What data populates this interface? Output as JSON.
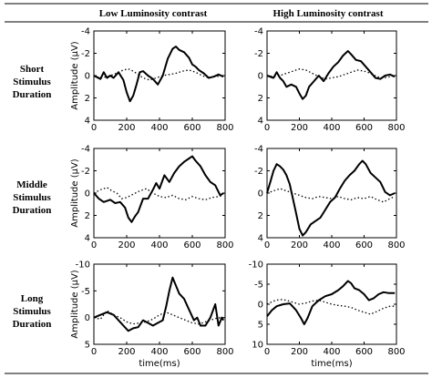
{
  "table": {
    "col_headers": [
      "Low Luminosity contrast",
      "High Luminosity contrast"
    ],
    "row_headers": [
      [
        "Short",
        "Stimulus",
        "Duration"
      ],
      [
        "Middle",
        "Stimulus",
        "Duration"
      ],
      [
        "Long",
        "Stimulus",
        "Duration"
      ]
    ]
  },
  "chart_data": [
    {
      "type": "line",
      "row": 0,
      "col": 0,
      "ylabel": "Amplitude (μV)",
      "xlabel": "",
      "xlim": [
        0,
        800
      ],
      "ylim": [
        -4,
        4
      ],
      "y_inverted": true,
      "xticks": [
        "0",
        "200",
        "400",
        "600",
        "800"
      ],
      "yticks": [
        "-4",
        "-2",
        "0",
        "2",
        "4"
      ],
      "series": [
        {
          "style": "solid",
          "x": [
            0,
            40,
            60,
            80,
            100,
            120,
            150,
            180,
            200,
            220,
            240,
            260,
            280,
            300,
            330,
            360,
            390,
            420,
            450,
            480,
            500,
            520,
            550,
            580,
            600,
            620,
            640,
            670,
            700,
            730,
            760,
            790
          ],
          "y": [
            0,
            0.3,
            -0.3,
            0.2,
            0,
            0.2,
            -0.3,
            0.4,
            1.5,
            2.3,
            1.8,
            0.8,
            -0.3,
            -0.4,
            0,
            0.3,
            0.8,
            0,
            -1.5,
            -2.4,
            -2.6,
            -2.3,
            -2.1,
            -1.6,
            -1,
            -0.8,
            -0.5,
            -0.2,
            0.2,
            0.1,
            -0.1,
            0.1
          ]
        },
        {
          "style": "dotted",
          "x": [
            0,
            40,
            80,
            120,
            150,
            180,
            210,
            240,
            270,
            300,
            340,
            380,
            420,
            460,
            500,
            540,
            580,
            620,
            660,
            700,
            740,
            790
          ],
          "y": [
            0,
            0.2,
            0.1,
            -0.1,
            -0.3,
            -0.5,
            -0.6,
            -0.4,
            -0.1,
            0.2,
            0.4,
            0.2,
            0,
            -0.1,
            -0.2,
            -0.4,
            -0.5,
            -0.3,
            0,
            0.2,
            0.1,
            0
          ]
        }
      ]
    },
    {
      "type": "line",
      "row": 0,
      "col": 1,
      "ylabel": "",
      "xlabel": "",
      "xlim": [
        0,
        800
      ],
      "ylim": [
        -4,
        4
      ],
      "y_inverted": true,
      "xticks": [
        "0",
        "200",
        "400",
        "600",
        "800"
      ],
      "yticks": [
        "-4",
        "-2",
        "0",
        "2",
        "4"
      ],
      "series": [
        {
          "style": "solid",
          "x": [
            0,
            40,
            60,
            80,
            100,
            120,
            150,
            180,
            200,
            220,
            240,
            260,
            290,
            320,
            350,
            380,
            410,
            440,
            470,
            500,
            520,
            550,
            580,
            610,
            640,
            670,
            700,
            730,
            760,
            790
          ],
          "y": [
            0,
            0.2,
            -0.3,
            0.2,
            0.5,
            1,
            0.8,
            1,
            1.6,
            2.1,
            1.8,
            1,
            0.5,
            0,
            0.5,
            -0.2,
            -0.8,
            -1.2,
            -1.8,
            -2.2,
            -1.9,
            -1.4,
            -1.3,
            -0.8,
            -0.3,
            0.2,
            0.3,
            0,
            -0.1,
            0.1
          ]
        },
        {
          "style": "dotted",
          "x": [
            0,
            40,
            80,
            120,
            160,
            200,
            240,
            280,
            320,
            360,
            400,
            440,
            480,
            520,
            560,
            600,
            640,
            680,
            720,
            760,
            790
          ],
          "y": [
            0,
            0.1,
            0,
            -0.2,
            -0.4,
            -0.6,
            -0.5,
            -0.2,
            0.1,
            0.3,
            0.2,
            0.1,
            -0.1,
            -0.3,
            -0.5,
            -0.4,
            -0.2,
            0.1,
            0.2,
            0.1,
            0
          ]
        }
      ]
    },
    {
      "type": "line",
      "row": 1,
      "col": 0,
      "ylabel": "Amplitude (μV)",
      "xlabel": "",
      "xlim": [
        0,
        800
      ],
      "ylim": [
        -4,
        4
      ],
      "y_inverted": true,
      "xticks": [
        "0",
        "200",
        "400",
        "600",
        "800"
      ],
      "yticks": [
        "-4",
        "-2",
        "0",
        "2",
        "4"
      ],
      "series": [
        {
          "style": "solid",
          "x": [
            0,
            30,
            60,
            100,
            130,
            160,
            190,
            210,
            230,
            250,
            270,
            300,
            330,
            360,
            380,
            400,
            430,
            460,
            490,
            520,
            550,
            580,
            600,
            620,
            650,
            680,
            710,
            740,
            770,
            790
          ],
          "y": [
            0,
            0.5,
            0.8,
            0.6,
            0.9,
            0.8,
            1.3,
            2.2,
            2.6,
            2.1,
            1.7,
            0.5,
            0.5,
            -0.3,
            -0.9,
            -0.4,
            -1.6,
            -1.0,
            -1.8,
            -2.4,
            -2.8,
            -3.1,
            -3.3,
            -2.9,
            -2.4,
            -1.6,
            -1.0,
            -0.7,
            0.2,
            0
          ]
        },
        {
          "style": "dotted",
          "x": [
            0,
            40,
            80,
            110,
            140,
            170,
            200,
            240,
            280,
            320,
            360,
            400,
            440,
            480,
            520,
            560,
            600,
            640,
            680,
            720,
            760,
            790
          ],
          "y": [
            0,
            -0.3,
            -0.5,
            -0.2,
            0,
            0.5,
            0.4,
            0.1,
            -0.2,
            -0.4,
            0,
            0.3,
            0.4,
            0.2,
            0.5,
            0.6,
            0.3,
            0.5,
            0.6,
            0.4,
            0.3,
            0.2
          ]
        }
      ]
    },
    {
      "type": "line",
      "row": 1,
      "col": 1,
      "ylabel": "",
      "xlabel": "",
      "xlim": [
        0,
        800
      ],
      "ylim": [
        -4,
        4
      ],
      "y_inverted": true,
      "xticks": [
        "0",
        "200",
        "400",
        "600",
        "800"
      ],
      "yticks": [
        "-4",
        "-2",
        "0",
        "2",
        "4"
      ],
      "series": [
        {
          "style": "solid",
          "x": [
            0,
            20,
            40,
            60,
            80,
            100,
            120,
            140,
            160,
            180,
            200,
            220,
            240,
            270,
            300,
            330,
            360,
            390,
            420,
            450,
            480,
            510,
            540,
            570,
            590,
            610,
            640,
            670,
            700,
            730,
            760,
            790
          ],
          "y": [
            0,
            -1,
            -2,
            -2.6,
            -2.4,
            -2.1,
            -1.6,
            -0.8,
            0.5,
            1.8,
            3.2,
            3.8,
            3.5,
            2.8,
            2.5,
            2.2,
            1.5,
            0.8,
            0.4,
            -0.4,
            -1.1,
            -1.6,
            -2.0,
            -2.6,
            -2.9,
            -2.6,
            -1.8,
            -1.4,
            -1.0,
            -0.1,
            0.2,
            0
          ]
        },
        {
          "style": "dotted",
          "x": [
            0,
            40,
            80,
            120,
            160,
            200,
            240,
            280,
            320,
            360,
            400,
            440,
            480,
            520,
            560,
            600,
            640,
            680,
            720,
            760,
            790
          ],
          "y": [
            0,
            -0.2,
            -0.4,
            -0.2,
            0,
            0.2,
            0.4,
            0.5,
            0.3,
            0.4,
            0.5,
            0.3,
            0.5,
            0.6,
            0.4,
            0.5,
            0.3,
            0.6,
            0.8,
            0.5,
            0.3
          ]
        }
      ]
    },
    {
      "type": "line",
      "row": 2,
      "col": 0,
      "ylabel": "Amplitude (μV)",
      "xlabel": "time(ms)",
      "xlim": [
        0,
        800
      ],
      "ylim": [
        -10,
        5
      ],
      "y_inverted": true,
      "xticks": [
        "0",
        "200",
        "400",
        "600",
        "800"
      ],
      "yticks": [
        "-10",
        "-5",
        "0",
        "5"
      ],
      "series": [
        {
          "style": "solid",
          "x": [
            0,
            40,
            80,
            120,
            150,
            180,
            210,
            240,
            270,
            300,
            330,
            360,
            390,
            420,
            440,
            460,
            480,
            500,
            520,
            550,
            580,
            610,
            630,
            650,
            680,
            710,
            740,
            760,
            780,
            790
          ],
          "y": [
            0,
            -0.5,
            -1,
            -0.5,
            0.5,
            1.5,
            2.5,
            2.0,
            1.8,
            0.5,
            1.0,
            1.5,
            1.0,
            0.5,
            -2,
            -5,
            -7.5,
            -6,
            -4.5,
            -3.5,
            -1.5,
            0.5,
            0,
            1.5,
            1.5,
            0,
            -2.5,
            1.5,
            0,
            0.5
          ]
        },
        {
          "style": "dotted",
          "x": [
            0,
            40,
            80,
            120,
            160,
            200,
            240,
            280,
            320,
            360,
            400,
            440,
            480,
            520,
            560,
            600,
            640,
            680,
            720,
            760,
            790
          ],
          "y": [
            0,
            0.3,
            -1.3,
            -0.5,
            0,
            0.8,
            1.2,
            1.0,
            0.8,
            0.3,
            -0.5,
            -1.0,
            -0.5,
            0,
            0.5,
            1.0,
            1.2,
            0.8,
            0.4,
            0,
            0.2
          ]
        }
      ]
    },
    {
      "type": "line",
      "row": 2,
      "col": 1,
      "ylabel": "",
      "xlabel": "time(ms)",
      "xlim": [
        0,
        800
      ],
      "ylim": [
        -10,
        10
      ],
      "y_inverted": true,
      "xticks": [
        "0",
        "200",
        "400",
        "600",
        "800"
      ],
      "yticks": [
        "-10",
        "-5",
        "0",
        "5",
        "10"
      ],
      "series": [
        {
          "style": "solid",
          "x": [
            0,
            30,
            60,
            100,
            140,
            180,
            210,
            230,
            250,
            280,
            320,
            360,
            400,
            440,
            470,
            500,
            520,
            540,
            570,
            600,
            630,
            660,
            690,
            720,
            750,
            790
          ],
          "y": [
            3,
            1.5,
            0.5,
            0,
            -0.2,
            1.5,
            3.5,
            5,
            3.5,
            0.5,
            -1,
            -2,
            -2.5,
            -3.5,
            -4.5,
            -5.8,
            -5.2,
            -4,
            -3.5,
            -2.5,
            -1,
            -1.5,
            -2.5,
            -3,
            -2.8,
            -2.8
          ]
        },
        {
          "style": "dotted",
          "x": [
            0,
            40,
            80,
            120,
            160,
            200,
            240,
            280,
            320,
            360,
            400,
            440,
            480,
            520,
            560,
            600,
            640,
            680,
            720,
            760,
            790
          ],
          "y": [
            0,
            -0.8,
            -1.2,
            -1,
            -0.5,
            0,
            -0.3,
            -0.8,
            -1,
            -0.5,
            0,
            0.3,
            0.5,
            0.8,
            1.5,
            2,
            2.5,
            1.8,
            1,
            0.5,
            0.5
          ]
        }
      ]
    }
  ]
}
